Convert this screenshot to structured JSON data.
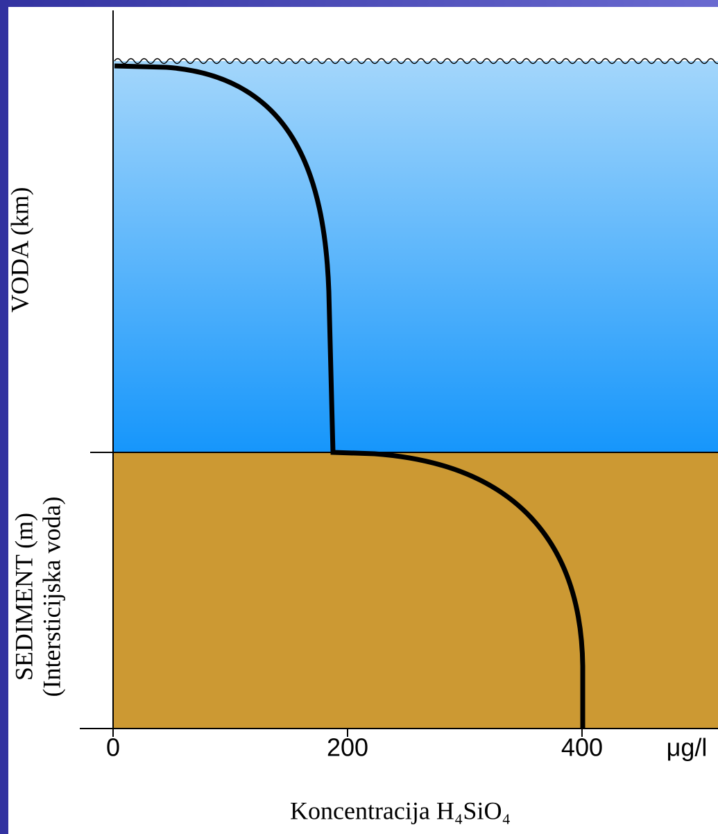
{
  "chart_data": {
    "type": "line",
    "title": "Koncentracija H₄SiO₄",
    "x_unit": "μg/l",
    "y_labels": [
      "VODA (km)",
      "SEDIMENT (m)",
      "(Intersticijska voda)"
    ],
    "xlim": [
      0,
      516
    ],
    "xticks": [
      0,
      200,
      400
    ],
    "water_color": "#1696fb",
    "sediment_color": "#cc9933"
  }
}
